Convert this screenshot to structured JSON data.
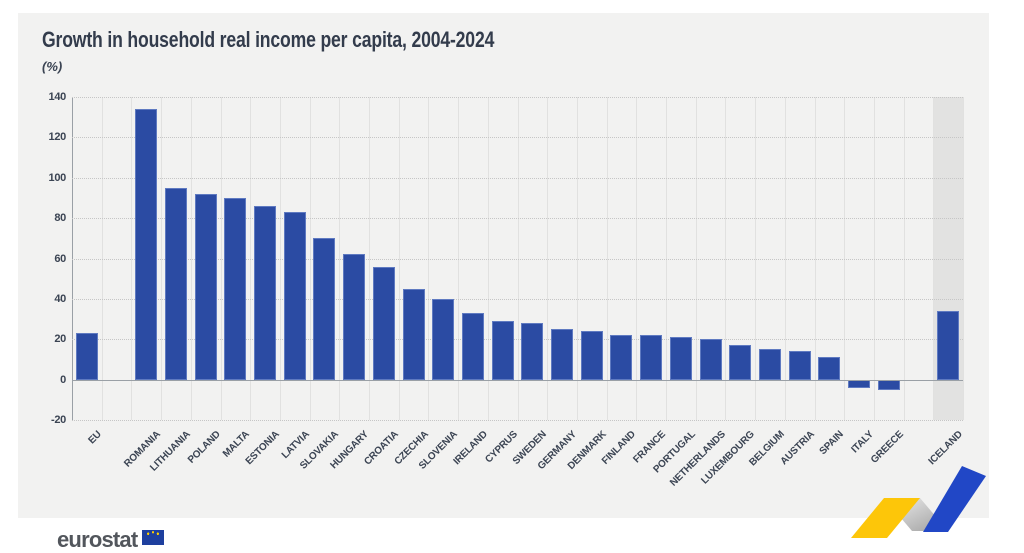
{
  "header": {
    "title": "Growth in household real income per capita, 2004-2024",
    "unit_label": "(%)"
  },
  "chart_data": {
    "type": "bar",
    "title": "Growth in household real income per capita, 2004-2024",
    "xlabel": "",
    "ylabel": "(%)",
    "ylim": [
      -20,
      140
    ],
    "ytick_step": 20,
    "grid": true,
    "legend": "none",
    "bar_color": "#2b4ba3",
    "highlight_band_color": "#e2e2e1",
    "categories": [
      "EU",
      "ROMANIA",
      "LITHUANIA",
      "POLAND",
      "MALTA",
      "ESTONIA",
      "LATVIA",
      "SLOVAKIA",
      "HUNGARY",
      "CROATIA",
      "CZECHIA",
      "SLOVENIA",
      "IRELAND",
      "CYPRUS",
      "SWEDEN",
      "GERMANY",
      "DENMARK",
      "FINLAND",
      "FRANCE",
      "PORTUGAL",
      "NETHERLANDS",
      "LUXEMBOURG",
      "BELGIUM",
      "AUSTRIA",
      "SPAIN",
      "ITALY",
      "GREECE",
      "ICELAND"
    ],
    "values": [
      23,
      134,
      95,
      92,
      90,
      86,
      83,
      70,
      62,
      56,
      45,
      40,
      33,
      29,
      28,
      25,
      24,
      22,
      22,
      21,
      20,
      17,
      15,
      14,
      11,
      -4,
      -5,
      34
    ],
    "gaps_after": [
      "EU",
      "GREECE"
    ],
    "highlighted_category": "ICELAND"
  },
  "footer": {
    "logo_text": "eurostat",
    "flag_color": "#1e3f9e",
    "ribbon": {
      "yellow": "#fdc609",
      "blue": "#2147c6",
      "gray_light": "#f0f0f0",
      "gray_dark": "#9e9e9e"
    }
  }
}
